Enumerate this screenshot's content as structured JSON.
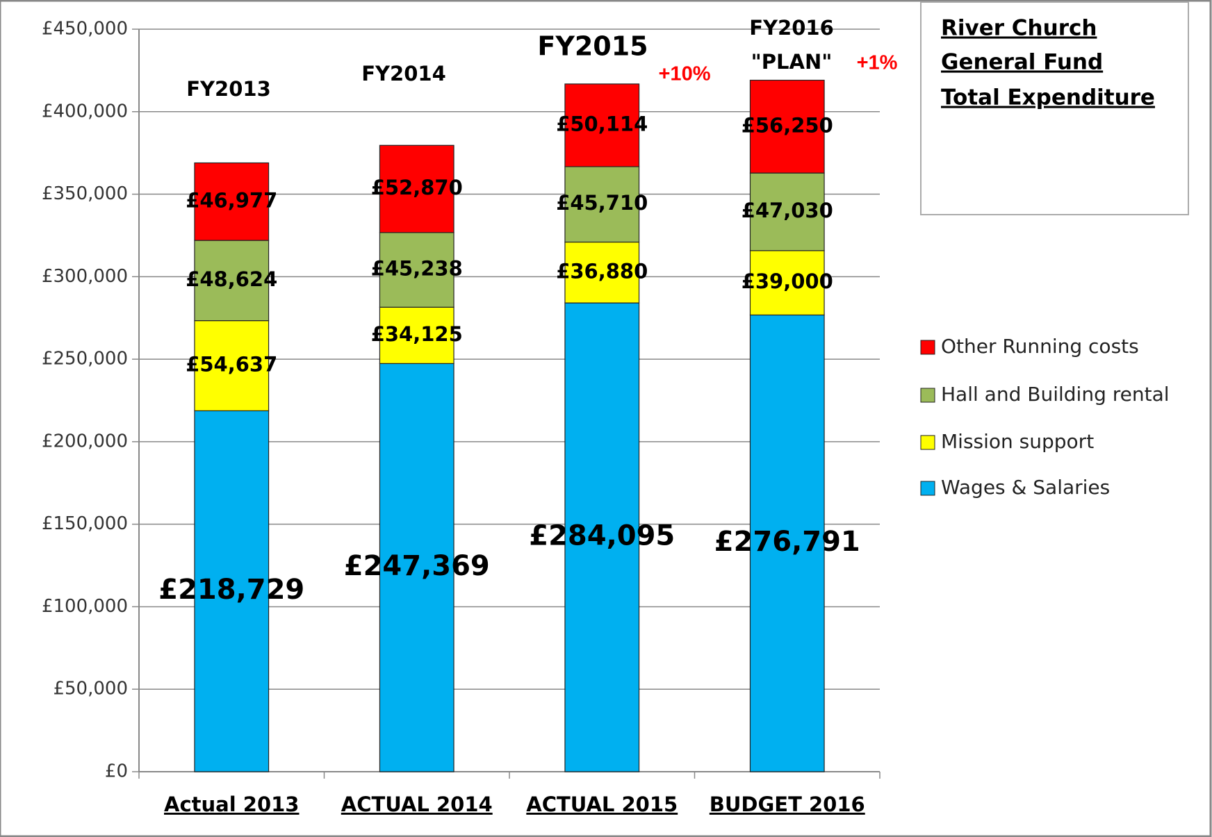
{
  "chart_data": {
    "type": "stacked_bar",
    "title": [
      "River Church",
      "General Fund",
      "Total Expenditure"
    ],
    "categories": [
      "Actual 2013",
      "ACTUAL 2014",
      "ACTUAL 2015",
      "BUDGET 2016"
    ],
    "series": [
      {
        "name": "Wages & Salaries",
        "color": "#00b0f0",
        "values": [
          218729,
          247369,
          284095,
          276791
        ],
        "value_labels": [
          "£218,729",
          "£247,369",
          "£284,095",
          "£276,791"
        ]
      },
      {
        "name": "Mission support",
        "color": "#ffff00",
        "values": [
          54637,
          34125,
          36880,
          39000
        ],
        "value_labels": [
          "£54,637",
          "£34,125",
          "£36,880",
          "£39,000"
        ]
      },
      {
        "name": "Hall and Building rental",
        "color": "#9bbb59",
        "values": [
          48624,
          45238,
          45710,
          47030
        ],
        "value_labels": [
          "£48,624",
          "£45,238",
          "£45,710",
          "£47,030"
        ]
      },
      {
        "name": "Other Running costs",
        "color": "#ff0000",
        "values": [
          46977,
          52870,
          50114,
          56250
        ],
        "value_labels": [
          "£46,977",
          "£52,870",
          "£50,114",
          "£56,250"
        ]
      }
    ],
    "annotations": [
      "FY2013",
      "FY2014",
      "FY2015",
      "FY2016",
      "\"PLAN\"",
      "+10%",
      "+1%"
    ],
    "ylim": [
      0,
      450000
    ],
    "yticks": [
      {
        "value": 0,
        "label": "£0"
      },
      {
        "value": 50000,
        "label": "£50,000"
      },
      {
        "value": 100000,
        "label": "£100,000"
      },
      {
        "value": 150000,
        "label": "£150,000"
      },
      {
        "value": 200000,
        "label": "£200,000"
      },
      {
        "value": 250000,
        "label": "£250,000"
      },
      {
        "value": 300000,
        "label": "£300,000"
      },
      {
        "value": 350000,
        "label": "£350,000"
      },
      {
        "value": 400000,
        "label": "£400,000"
      },
      {
        "value": 450000,
        "label": "£450,000"
      }
    ],
    "grid": true,
    "legend": "right"
  }
}
